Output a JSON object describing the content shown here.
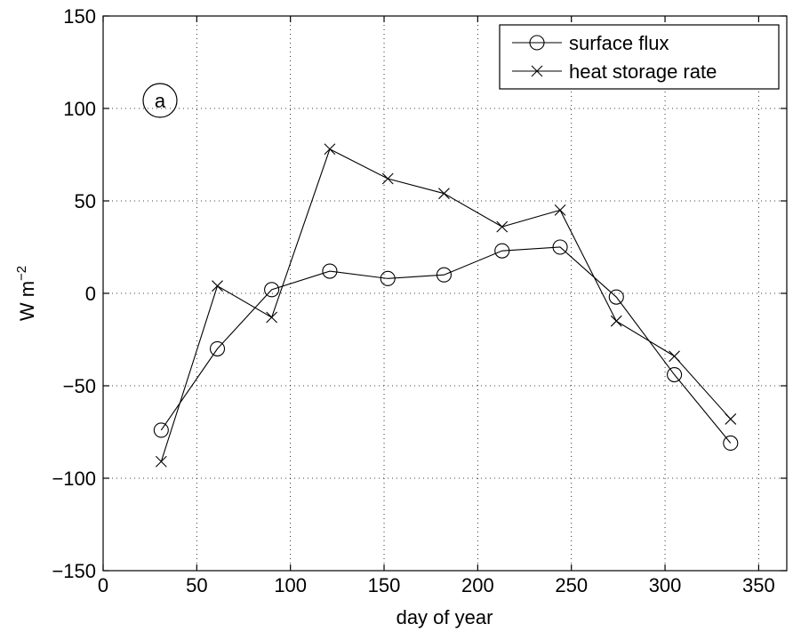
{
  "chart_data": {
    "type": "line",
    "title": "",
    "xlabel": "day of year",
    "ylabel": "W m",
    "ylabel_superscript": "−2",
    "xlim": [
      0,
      365
    ],
    "ylim": [
      -150,
      150
    ],
    "xticks": [
      0,
      50,
      100,
      150,
      200,
      250,
      300,
      350
    ],
    "yticks": [
      -150,
      -100,
      -50,
      0,
      50,
      100,
      150
    ],
    "xtick_labels": [
      "0",
      "50",
      "100",
      "150",
      "200",
      "250",
      "300",
      "350"
    ],
    "ytick_labels": [
      "−150",
      "−100",
      "−50",
      "0",
      "50",
      "100",
      "150"
    ],
    "grid": true,
    "legend_position": "top-right",
    "annotation": "a",
    "x": [
      31,
      61,
      90,
      121,
      152,
      182,
      213,
      244,
      274,
      305,
      335
    ],
    "series": [
      {
        "name": "surface flux",
        "marker": "circle",
        "values": [
          -74,
          -30,
          2,
          12,
          8,
          10,
          23,
          25,
          -2,
          -44,
          -81
        ]
      },
      {
        "name": "heat storage rate",
        "marker": "x",
        "values": [
          -91,
          4,
          -13,
          78,
          62,
          54,
          36,
          45,
          -15,
          -34,
          -68
        ]
      }
    ]
  }
}
